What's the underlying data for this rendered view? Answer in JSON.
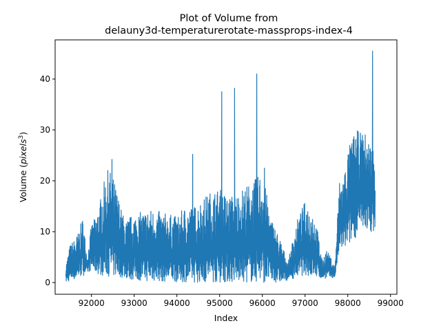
{
  "chart_data": {
    "type": "line",
    "title_line1": "Plot of Volume from",
    "title_line2": "delauny3d-temperaturerotate-massprops-index-4",
    "xlabel": "Index",
    "ylabel_prefix": "Volume (",
    "ylabel_var": "pixels",
    "ylabel_exp": "3",
    "ylabel_suffix": ")",
    "xlim": [
      91150,
      99150
    ],
    "ylim": [
      -2.3,
      47.7
    ],
    "xticks": [
      92000,
      93000,
      94000,
      95000,
      96000,
      97000,
      98000,
      99000
    ],
    "xtick_labels": [
      "92000",
      "93000",
      "94000",
      "95000",
      "96000",
      "97000",
      "98000",
      "99000"
    ],
    "yticks": [
      0,
      10,
      20,
      30,
      40
    ],
    "ytick_labels": [
      "0",
      "10",
      "20",
      "30",
      "40"
    ],
    "grid": false,
    "legend": "none",
    "series": [
      {
        "color": "#1f77b4",
        "x_range": [
          91400,
          98640
        ],
        "envelope": {
          "x": [
            91400,
            91500,
            91600,
            91700,
            91800,
            91900,
            92000,
            92100,
            92200,
            92300,
            92400,
            92500,
            92600,
            92700,
            92800,
            92900,
            93000,
            93200,
            93400,
            93600,
            93800,
            94000,
            94200,
            94400,
            94600,
            94800,
            95000,
            95200,
            95400,
            95600,
            95800,
            96000,
            96200,
            96400,
            96600,
            96800,
            97000,
            97100,
            97200,
            97300,
            97400,
            97500,
            97600,
            97700,
            97800,
            97900,
            98000,
            98100,
            98200,
            98300,
            98400,
            98500,
            98640
          ],
          "low": [
            0,
            0.3,
            0.6,
            0.9,
            1.3,
            1.8,
            2.5,
            1.8,
            1.5,
            1.3,
            1.2,
            1.0,
            1.1,
            1.0,
            0.8,
            0.5,
            0.5,
            0.3,
            0.2,
            0.2,
            0.1,
            0.1,
            0.1,
            0.0,
            0.0,
            0.0,
            0.0,
            0.0,
            0.0,
            0.0,
            0.0,
            0.0,
            0.0,
            0.0,
            0.5,
            1.0,
            1.5,
            1.2,
            1.0,
            0.9,
            0.8,
            0.8,
            0.9,
            1.0,
            6.0,
            6.5,
            7.0,
            8.0,
            9.0,
            10.0,
            10.5,
            10.0,
            10.0
          ],
          "high": [
            3.5,
            7.5,
            8.5,
            10.0,
            13.0,
            5.0,
            11.5,
            13.0,
            16.0,
            20.0,
            22.5,
            21.0,
            18.0,
            14.5,
            12.0,
            13.0,
            13.5,
            14.0,
            14.5,
            14.0,
            13.5,
            13.0,
            15.0,
            15.0,
            16.5,
            18.0,
            18.5,
            17.0,
            17.5,
            19.0,
            20.0,
            22.0,
            13.0,
            9.0,
            4.0,
            12.0,
            16.0,
            15.0,
            14.0,
            10.0,
            4.5,
            6.5,
            5.0,
            3.0,
            20.0,
            21.0,
            26.0,
            28.5,
            30.0,
            29.5,
            29.5,
            28.0,
            26.5
          ]
        },
        "spikes": [
          {
            "x": 92480,
            "y": 24.2
          },
          {
            "x": 94370,
            "y": 25.2
          },
          {
            "x": 95050,
            "y": 37.5
          },
          {
            "x": 95350,
            "y": 38.2
          },
          {
            "x": 95870,
            "y": 41.0
          },
          {
            "x": 96050,
            "y": 22.5
          },
          {
            "x": 98580,
            "y": 45.5
          }
        ]
      }
    ]
  }
}
